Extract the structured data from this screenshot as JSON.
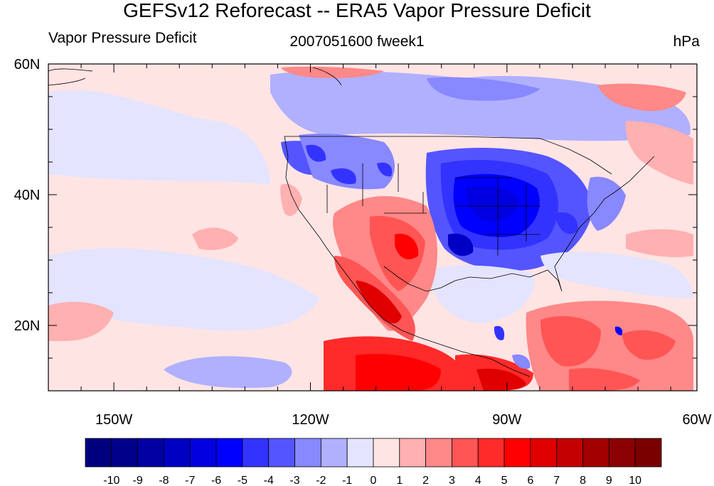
{
  "title": "GEFSv12 Reforecast -- ERA5 Vapor Pressure Deficit",
  "subtitle_left": "Vapor Pressure Deficit",
  "subtitle_center": "2007051600 fweek1",
  "subtitle_right": "hPa",
  "map": {
    "lon_range": [
      -160,
      -61
    ],
    "lat_range": [
      10,
      60
    ],
    "lat_ticks": [
      {
        "value": 60,
        "label": "60N"
      },
      {
        "value": 40,
        "label": "40N"
      },
      {
        "value": 20,
        "label": "20N"
      }
    ],
    "lon_ticks": [
      {
        "value": -150,
        "label": "150W"
      },
      {
        "value": -120,
        "label": "120W"
      },
      {
        "value": -90,
        "label": "90W"
      },
      {
        "value": -60,
        "label": "60W"
      }
    ]
  },
  "colorbar": {
    "labels": [
      "-10",
      "-9",
      "-8",
      "-7",
      "-6",
      "-5",
      "-4",
      "-3",
      "-2",
      "-1",
      "0",
      "1",
      "2",
      "3",
      "4",
      "5",
      "6",
      "7",
      "8",
      "9",
      "10"
    ],
    "colors": [
      "#00007f",
      "#00008b",
      "#0000a3",
      "#0000c4",
      "#0000e0",
      "#0000ff",
      "#3333ff",
      "#5555ff",
      "#8888ff",
      "#b0b0ff",
      "#e4e4ff",
      "#ffe4e4",
      "#ffb0b0",
      "#ff8888",
      "#ff5555",
      "#ff2a2a",
      "#ff0000",
      "#e00000",
      "#c40000",
      "#a30000",
      "#8b0000",
      "#7a0000"
    ]
  }
}
